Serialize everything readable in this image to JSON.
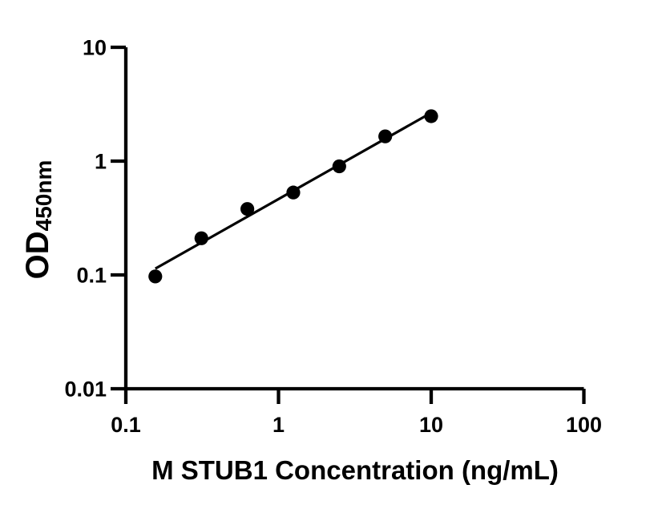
{
  "chart_data": {
    "type": "scatter",
    "title": "",
    "xlabel": "M STUB1 Concentration (ng/mL)",
    "ylabel_main": "OD",
    "ylabel_sub": "450nm",
    "xscale": "log",
    "yscale": "log",
    "xlim": [
      0.1,
      100
    ],
    "ylim": [
      0.01,
      10
    ],
    "grid": false,
    "legend": "none",
    "marker_color": "#000000",
    "line_color": "#000000",
    "axis_color": "#000000",
    "background": "#ffffff",
    "fit": "least-squares line in log-log space drawn from first to last point",
    "x_ticks": [
      {
        "value": 0.1,
        "label": "0.1"
      },
      {
        "value": 1,
        "label": "1"
      },
      {
        "value": 10,
        "label": "10"
      },
      {
        "value": 100,
        "label": "100"
      }
    ],
    "y_ticks": [
      {
        "value": 10,
        "label": "10"
      },
      {
        "value": 1,
        "label": "1"
      },
      {
        "value": 0.1,
        "label": "0.1"
      },
      {
        "value": 0.01,
        "label": "0.01"
      }
    ],
    "points": [
      {
        "conc": 0.156,
        "od": 0.097
      },
      {
        "conc": 0.3125,
        "od": 0.21
      },
      {
        "conc": 0.625,
        "od": 0.38
      },
      {
        "conc": 1.25,
        "od": 0.53
      },
      {
        "conc": 2.5,
        "od": 0.9
      },
      {
        "conc": 5,
        "od": 1.65
      },
      {
        "conc": 10,
        "od": 2.48
      }
    ]
  }
}
